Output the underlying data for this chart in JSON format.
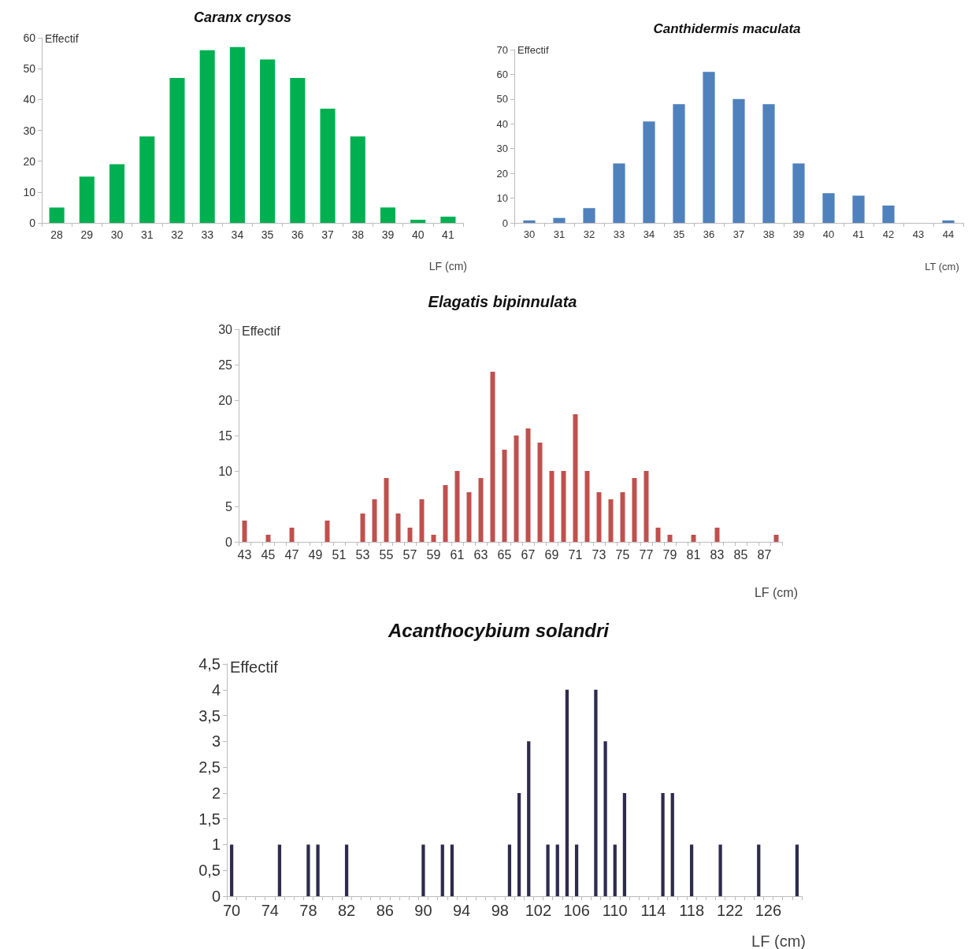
{
  "chart_data": [
    {
      "type": "bar",
      "title": "Caranx crysos",
      "xlabel": "LF (cm)",
      "ylabel": "Effectif",
      "categories": [
        "28",
        "29",
        "30",
        "31",
        "32",
        "33",
        "34",
        "35",
        "36",
        "37",
        "38",
        "39",
        "40",
        "41"
      ],
      "series": [
        {
          "color": "#00b050",
          "values": [
            5,
            15,
            19,
            28,
            47,
            56,
            57,
            53,
            47,
            37,
            28,
            5,
            1,
            2
          ]
        }
      ],
      "ylim": [
        0,
        60
      ],
      "yticks": [
        0,
        10,
        20,
        30,
        40,
        50,
        60
      ]
    },
    {
      "type": "bar",
      "title": "Canthidermis maculata",
      "xlabel": "LT (cm)",
      "ylabel": "Effectif",
      "categories": [
        "30",
        "31",
        "32",
        "33",
        "34",
        "35",
        "36",
        "37",
        "38",
        "39",
        "40",
        "41",
        "42",
        "43",
        "44"
      ],
      "series": [
        {
          "color": "#4f81bd",
          "values": [
            1,
            2,
            6,
            24,
            41,
            48,
            61,
            50,
            48,
            24,
            12,
            11,
            7,
            0,
            1
          ]
        }
      ],
      "ylim": [
        0,
        70
      ],
      "yticks": [
        0,
        10,
        20,
        30,
        40,
        50,
        60,
        70
      ]
    },
    {
      "type": "bar",
      "title": "Elagatis bipinnulata",
      "xlabel": "LF (cm)",
      "ylabel": "Effectif",
      "categories": [
        "43",
        null,
        "45",
        null,
        "47",
        null,
        "49",
        null,
        "51",
        null,
        "53",
        null,
        "55",
        null,
        "57",
        null,
        "59",
        null,
        "61",
        null,
        "63",
        null,
        "65",
        null,
        "67",
        null,
        "69",
        null,
        "71",
        null,
        "73",
        null,
        "75",
        null,
        "77",
        null,
        "79",
        null,
        "81",
        null,
        "83",
        null,
        "85",
        null,
        "87",
        null
      ],
      "series": [
        {
          "color": "#c0504d",
          "values": [
            3,
            0,
            1,
            0,
            2,
            0,
            0,
            3,
            0,
            0,
            4,
            6,
            9,
            4,
            2,
            6,
            1,
            8,
            10,
            7,
            9,
            24,
            13,
            15,
            16,
            14,
            10,
            10,
            18,
            10,
            7,
            6,
            7,
            9,
            10,
            2,
            1,
            0,
            1,
            0,
            2,
            0,
            0,
            0,
            0,
            1
          ]
        }
      ],
      "ylim": [
        0,
        30
      ],
      "yticks": [
        0,
        5,
        10,
        15,
        20,
        25,
        30
      ]
    },
    {
      "type": "bar",
      "title": "Acanthocybium solandri",
      "xlabel": "LF (cm)",
      "ylabel": "Effectif",
      "categories": [
        "70",
        null,
        null,
        null,
        "74",
        null,
        null,
        null,
        "78",
        null,
        null,
        null,
        "82",
        null,
        null,
        null,
        "86",
        null,
        null,
        null,
        "90",
        null,
        null,
        null,
        "94",
        null,
        null,
        null,
        "98",
        null,
        null,
        null,
        "102",
        null,
        null,
        null,
        "106",
        null,
        null,
        null,
        "110",
        null,
        null,
        null,
        "114",
        null,
        null,
        null,
        "118",
        null,
        null,
        null,
        "122",
        null,
        null,
        null,
        "126",
        null,
        null,
        null
      ],
      "series": [
        {
          "color": "#2e2b4f",
          "values": [
            1,
            0,
            0,
            0,
            0,
            1,
            0,
            0,
            1,
            1,
            0,
            0,
            1,
            0,
            0,
            0,
            0,
            0,
            0,
            0,
            1,
            0,
            1,
            1,
            0,
            0,
            0,
            0,
            0,
            1,
            2,
            3,
            0,
            1,
            1,
            4,
            1,
            0,
            4,
            3,
            1,
            2,
            0,
            0,
            0,
            2,
            2,
            0,
            1,
            0,
            0,
            1,
            0,
            0,
            0,
            1,
            0,
            0,
            0,
            1
          ]
        }
      ],
      "ylim": [
        0,
        4.5
      ],
      "yticks": [
        0,
        {
          "value": 0.5,
          "label": "0,5"
        },
        1,
        {
          "value": 1.5,
          "label": "1,5"
        },
        2,
        {
          "value": 2.5,
          "label": "2,5"
        },
        3,
        {
          "value": 3.5,
          "label": "3,5"
        },
        4,
        {
          "value": 4.5,
          "label": "4,5"
        }
      ]
    }
  ]
}
